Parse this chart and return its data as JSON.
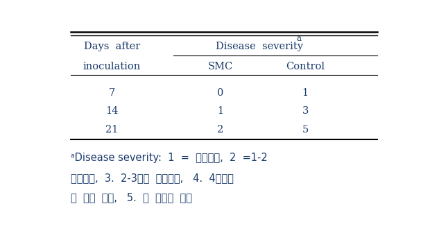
{
  "col1_header_line1": "Days  after",
  "col1_header_line2": "inoculation",
  "col2_main_header": "Disease  severity",
  "col2_main_header_super": "a",
  "col2_sub_header": "SMC",
  "col3_sub_header": "Control",
  "rows": [
    {
      "day": "7",
      "smc": "0",
      "control": "1"
    },
    {
      "day": "14",
      "smc": "1",
      "control": "3"
    },
    {
      "day": "21",
      "smc": "2",
      "control": "5"
    }
  ],
  "footnote_line1": "ᵃDisease severity:  1  =  병징없음,  2  =1-2",
  "footnote_line2": "잎이시듦,  3.  2-3개의  잎이시듦,   4.  4개이상",
  "footnote_line3": "의  잎이  시듦,   5.  잎  전체가  시듦",
  "text_color": "#1a3a6b",
  "bg_color": "#ffffff",
  "font_size": 10.5,
  "footnote_font_size": 10.5
}
